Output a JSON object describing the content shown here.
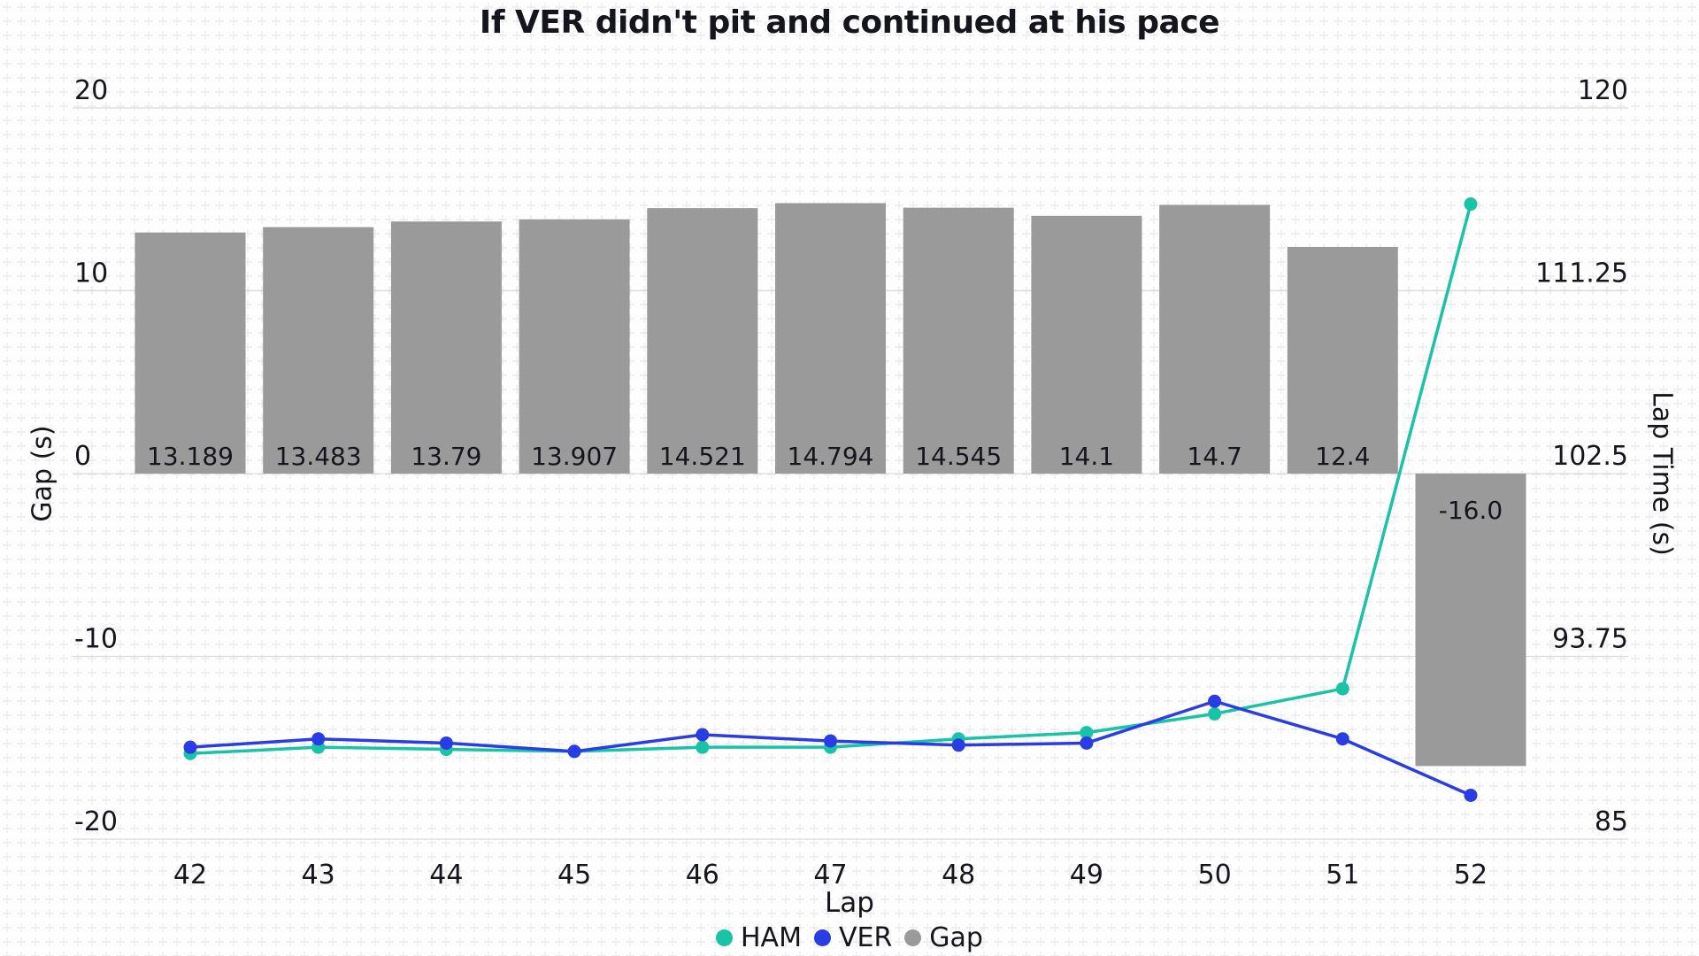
{
  "title": "If VER didn't pit and continued at his pace",
  "legend": [
    {
      "label": "HAM",
      "color": "#19c3a6"
    },
    {
      "label": "VER",
      "color": "#2a3de4"
    },
    {
      "label": "Gap",
      "color": "#9a9a9a"
    }
  ],
  "axes": {
    "left": {
      "title": "Gap (s)",
      "tick_labels": [
        "20",
        "10",
        "0",
        "-10",
        "-20"
      ],
      "tick_values": [
        20,
        10,
        0,
        -10,
        -20
      ]
    },
    "right": {
      "title": "Lap Time (s)",
      "tick_labels": [
        "120",
        "111.25",
        "102.5",
        "93.75",
        "85"
      ],
      "tick_values": [
        120,
        111.25,
        102.5,
        93.75,
        85
      ]
    },
    "x": {
      "title": "Lap",
      "tick_labels": [
        "42",
        "43",
        "44",
        "45",
        "46",
        "47",
        "48",
        "49",
        "50",
        "51",
        "52"
      ]
    }
  },
  "chart_data": {
    "type": "combo",
    "title": "If VER didn't pit and continued at his pace",
    "x": [
      42,
      43,
      44,
      45,
      46,
      47,
      48,
      49,
      50,
      51,
      52
    ],
    "xlabel": "Lap",
    "grid": true,
    "legend_position": "bottom",
    "left_axis": {
      "label": "Gap (s)",
      "range": [
        -20,
        20
      ],
      "ticks": [
        20,
        10,
        0,
        -10,
        -20
      ]
    },
    "right_axis": {
      "label": "Lap Time (s)",
      "range": [
        85,
        120
      ],
      "ticks": [
        120,
        111.25,
        102.5,
        93.75,
        85
      ]
    },
    "series": [
      {
        "name": "HAM",
        "type": "line",
        "axis": "right",
        "color": "#19c3a6",
        "values": [
          89.1,
          89.4,
          89.3,
          89.2,
          89.4,
          89.4,
          89.8,
          90.1,
          91.0,
          92.2,
          115.4
        ]
      },
      {
        "name": "VER",
        "type": "line",
        "axis": "right",
        "color": "#2a3de4",
        "values": [
          89.4,
          89.8,
          89.6,
          89.2,
          90.0,
          89.7,
          89.5,
          89.6,
          91.6,
          89.8,
          87.1
        ]
      },
      {
        "name": "Gap",
        "type": "bar",
        "axis": "left",
        "color": "#9a9a9a",
        "values": [
          13.189,
          13.483,
          13.79,
          13.907,
          14.521,
          14.794,
          14.545,
          14.1,
          14.7,
          12.4,
          -16.0
        ],
        "labels": [
          "13.189",
          "13.483",
          "13.79",
          "13.907",
          "14.521",
          "14.794",
          "14.545",
          "14.1",
          "14.7",
          "12.4",
          "-16.0"
        ]
      }
    ]
  },
  "colors": {
    "text": "#15151e",
    "gridline": "#d9d9de",
    "plus_pattern": "#eaeaf0",
    "bar": "#9a9a9a",
    "ham": "#19c3a6",
    "ver": "#2a3de4"
  }
}
